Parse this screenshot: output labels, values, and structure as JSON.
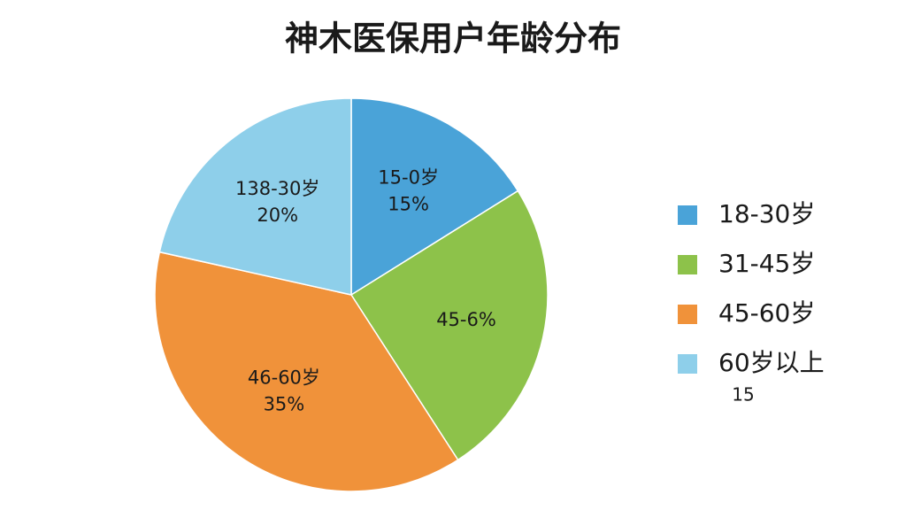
{
  "chart_data": {
    "type": "pie",
    "title": "神木医保用户年龄分布",
    "labels": [
      "18-30岁",
      "31-45岁",
      "45-60岁",
      "60岁以上"
    ],
    "values": [
      15,
      23,
      35,
      20
    ],
    "colors": [
      "#4aa3d8",
      "#8dc24a",
      "#f0923a",
      "#8ecfea"
    ],
    "slice_labels": [
      [
        "15-0岁",
        "15%"
      ],
      [
        "45-6%"
      ],
      [
        "46-60岁",
        "35%"
      ],
      [
        "138-30岁",
        "20%"
      ]
    ],
    "annotation": "15",
    "legend": "right"
  }
}
